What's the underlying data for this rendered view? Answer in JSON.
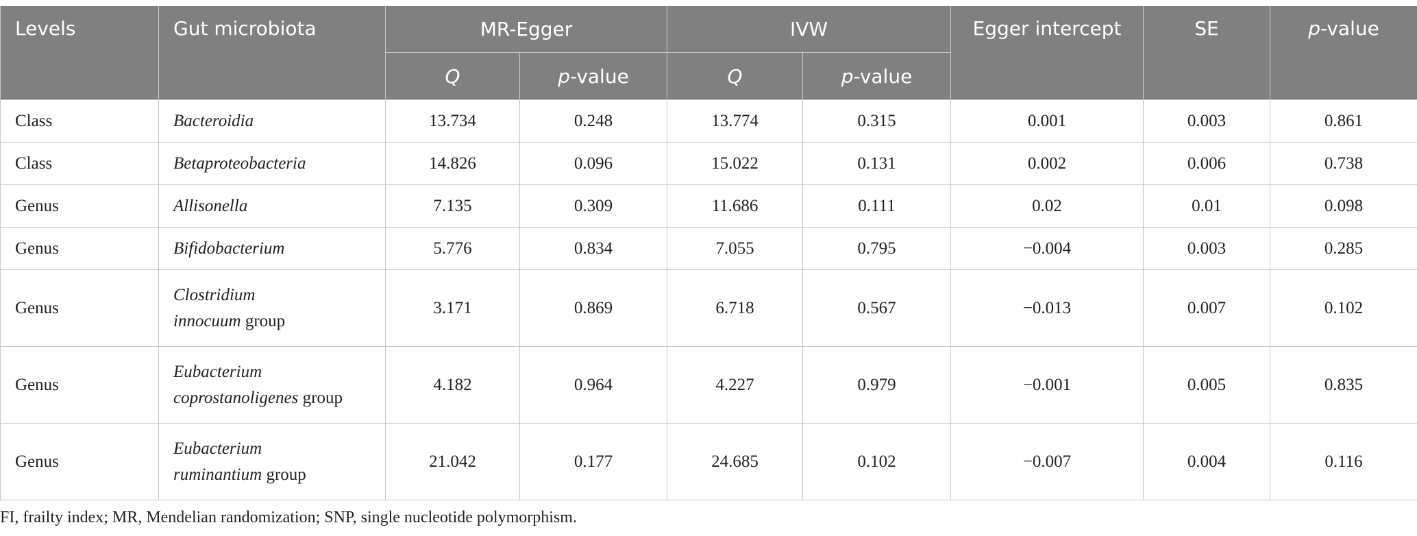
{
  "header": {
    "levels": "Levels",
    "microbiota": "Gut microbiota",
    "mr_egger": "MR-Egger",
    "ivw": "IVW",
    "q": "Q",
    "p_value": {
      "italic": "p",
      "rest": "-value"
    },
    "egger_intercept": "Egger intercept",
    "se": "SE"
  },
  "rows": [
    {
      "level": "Class",
      "microbiota": {
        "name": "Bacteroidia"
      },
      "values": [
        "13.734",
        "0.248",
        "13.774",
        "0.315",
        "0.001",
        "0.003",
        "0.861"
      ]
    },
    {
      "level": "Class",
      "microbiota": {
        "name": "Betaproteobacteria"
      },
      "values": [
        "14.826",
        "0.096",
        "15.022",
        "0.131",
        "0.002",
        "0.006",
        "0.738"
      ]
    },
    {
      "level": "Genus",
      "microbiota": {
        "name": "Allisonella"
      },
      "values": [
        "7.135",
        "0.309",
        "11.686",
        "0.111",
        "0.02",
        "0.01",
        "0.098"
      ]
    },
    {
      "level": "Genus",
      "microbiota": {
        "name": "Bifidobacterium"
      },
      "values": [
        "5.776",
        "0.834",
        "7.055",
        "0.795",
        "−0.004",
        "0.003",
        "0.285"
      ]
    },
    {
      "level": "Genus",
      "microbiota": {
        "name": "Clostridium innocuum",
        "suffix": "group"
      },
      "values": [
        "3.171",
        "0.869",
        "6.718",
        "0.567",
        "−0.013",
        "0.007",
        "0.102"
      ]
    },
    {
      "level": "Genus",
      "microbiota": {
        "name": "Eubacterium coprostanoligenes",
        "suffix": "group"
      },
      "values": [
        "4.182",
        "0.964",
        "4.227",
        "0.979",
        "−0.001",
        "0.005",
        "0.835"
      ]
    },
    {
      "level": "Genus",
      "microbiota": {
        "name": "Eubacterium ruminantium",
        "suffix": "group"
      },
      "values": [
        "21.042",
        "0.177",
        "24.685",
        "0.102",
        "−0.007",
        "0.004",
        "0.116"
      ]
    }
  ],
  "footnote": "FI, frailty index; MR, Mendelian randomization; SNP, single nucleotide polymorphism."
}
